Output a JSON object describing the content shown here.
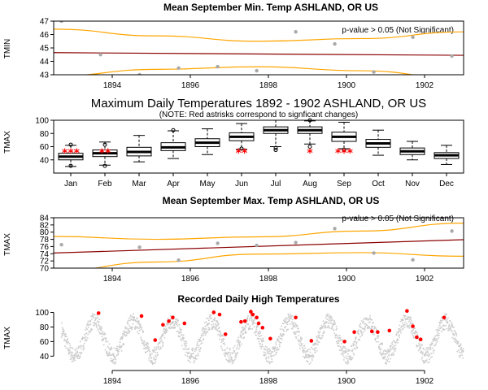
{
  "colors": {
    "trend": "#8b0000",
    "ci": "#ffa500",
    "point": "#a9a9a9",
    "daily": "#cccccc",
    "highlight": "#ff0000",
    "box_fill": "#ffffff"
  },
  "chart_data": [
    {
      "type": "scatter",
      "title": "Mean September Min. Temp ASHLAND, OR US",
      "ylabel": "TMIN",
      "annotation": "p-value > 0.05 (Not Significant)",
      "xlim": [
        1892.5,
        1903.0
      ],
      "ylim": [
        43,
        47
      ],
      "xticks": [
        1894,
        1896,
        1898,
        1900,
        1902
      ],
      "yticks": [
        43,
        44,
        45,
        46,
        47
      ],
      "x": [
        1892.7,
        1893.7,
        1894.7,
        1895.7,
        1896.7,
        1897.7,
        1898.7,
        1899.7,
        1900.7,
        1901.7,
        1902.7
      ],
      "y": [
        47.0,
        44.5,
        43.0,
        43.5,
        43.6,
        43.3,
        46.2,
        45.3,
        43.2,
        45.8,
        44.4
      ],
      "trend": {
        "y_start": 44.65,
        "y_end": 44.45
      },
      "ci_upper": [
        46.4,
        45.9,
        45.5,
        45.7,
        46.2
      ],
      "ci_lower": [
        42.9,
        43.4,
        43.6,
        43.3,
        42.7
      ]
    },
    {
      "type": "box",
      "title": "Maximum Daily Temperatures 1892 - 1902 ASHLAND, OR US",
      "subtitle": "(NOTE: Red astrisks correspond to signficant changes)",
      "ylabel": "TMAX",
      "ylim": [
        20,
        100
      ],
      "yticks": [
        40,
        60,
        80,
        100
      ],
      "categories": [
        "Jan",
        "Feb",
        "Mar",
        "Apr",
        "May",
        "Jun",
        "Jul",
        "Aug",
        "Sep",
        "Oct",
        "Nov",
        "Dec"
      ],
      "boxes": [
        {
          "min": 30,
          "q1": 40,
          "median": 45,
          "q3": 50,
          "max": 62,
          "outliers": [
            31,
            63
          ]
        },
        {
          "min": 32,
          "q1": 45,
          "median": 50,
          "q3": 55,
          "max": 67,
          "outliers": [
            31,
            63
          ]
        },
        {
          "min": 37,
          "q1": 46,
          "median": 52,
          "q3": 59,
          "max": 77,
          "outliers": []
        },
        {
          "min": 42,
          "q1": 54,
          "median": 59,
          "q3": 66,
          "max": 84,
          "outliers": [
            85
          ]
        },
        {
          "min": 48,
          "q1": 60,
          "median": 66,
          "q3": 72,
          "max": 87,
          "outliers": []
        },
        {
          "min": 56,
          "q1": 69,
          "median": 75,
          "q3": 81,
          "max": 95,
          "outliers": [
            57
          ]
        },
        {
          "min": 60,
          "q1": 80,
          "median": 85,
          "q3": 90,
          "max": 100,
          "outliers": [
            55,
            58
          ]
        },
        {
          "min": 64,
          "q1": 80,
          "median": 85,
          "q3": 90,
          "max": 99,
          "outliers": [
            60,
            100
          ]
        },
        {
          "min": 57,
          "q1": 68,
          "median": 75,
          "q3": 82,
          "max": 97,
          "outliers": [
            55
          ]
        },
        {
          "min": 47,
          "q1": 59,
          "median": 65,
          "q3": 71,
          "max": 85,
          "outliers": []
        },
        {
          "min": 40,
          "q1": 48,
          "median": 53,
          "q3": 58,
          "max": 68,
          "outliers": []
        },
        {
          "min": 33,
          "q1": 42,
          "median": 47,
          "q3": 51,
          "max": 62,
          "outliers": []
        }
      ],
      "significant": [
        {
          "month": "Jan",
          "label": "***",
          "value": 57
        },
        {
          "month": "Feb",
          "label": "**",
          "value": 57
        },
        {
          "month": "Jun",
          "label": "**",
          "value": 57
        },
        {
          "month": "Aug",
          "label": "*",
          "value": 57
        },
        {
          "month": "Sep",
          "label": "***",
          "value": 57
        }
      ]
    },
    {
      "type": "scatter",
      "title": "Mean September Max. Temp ASHLAND, OR US",
      "ylabel": "TMAX",
      "annotation": "p-value > 0.05 (Not Significant)",
      "xlim": [
        1892.5,
        1903.0
      ],
      "ylim": [
        70,
        84
      ],
      "xticks": [
        1894,
        1896,
        1898,
        1900,
        1902
      ],
      "yticks": [
        70,
        72,
        74,
        76,
        78,
        80,
        82,
        84
      ],
      "x": [
        1892.7,
        1893.7,
        1894.7,
        1895.7,
        1896.7,
        1897.7,
        1898.7,
        1899.7,
        1900.7,
        1901.7,
        1902.7
      ],
      "y": [
        76.5,
        69.8,
        75.8,
        72.2,
        76.9,
        76.3,
        77.1,
        81.0,
        74.2,
        72.3,
        80.3
      ],
      "trend": {
        "y_start": 74.2,
        "y_end": 77.9
      },
      "ci_upper": [
        78.8,
        78.0,
        78.7,
        80.3,
        82.5
      ],
      "ci_lower": [
        69.2,
        71.7,
        73.9,
        74.3,
        73.3
      ]
    },
    {
      "type": "scatter",
      "title": "Recorded Daily High Temperatures",
      "ylabel": "TMAX",
      "xlim": [
        1892.5,
        1903.0
      ],
      "ylim": [
        27,
        105
      ],
      "xticks": [
        1894,
        1896,
        1898,
        1900,
        1902
      ],
      "yticks": [
        40,
        60,
        80,
        100
      ],
      "series": [
        {
          "label": "daily",
          "years": [
            1892.7,
            1903.0
          ],
          "mean": 64,
          "amplitude": 24
        },
        {
          "label": "highlight",
          "x": [
            1893.65,
            1894.75,
            1895.1,
            1895.3,
            1895.45,
            1895.55,
            1895.85,
            1896.6,
            1896.75,
            1896.9,
            1897.3,
            1897.4,
            1897.55,
            1897.6,
            1897.7,
            1897.75,
            1897.85,
            1898.05,
            1898.7,
            1899.1,
            1899.95,
            1900.2,
            1900.65,
            1900.8,
            1901.1,
            1901.55,
            1901.7,
            1901.8,
            1901.9,
            1902.5
          ],
          "y": [
            99,
            95,
            62,
            83,
            88,
            93,
            85,
            100,
            97,
            70,
            87,
            88,
            101,
            97,
            93,
            85,
            79,
            64,
            93,
            61,
            60,
            73,
            74,
            73,
            75,
            102,
            81,
            66,
            63,
            93
          ]
        }
      ]
    }
  ]
}
